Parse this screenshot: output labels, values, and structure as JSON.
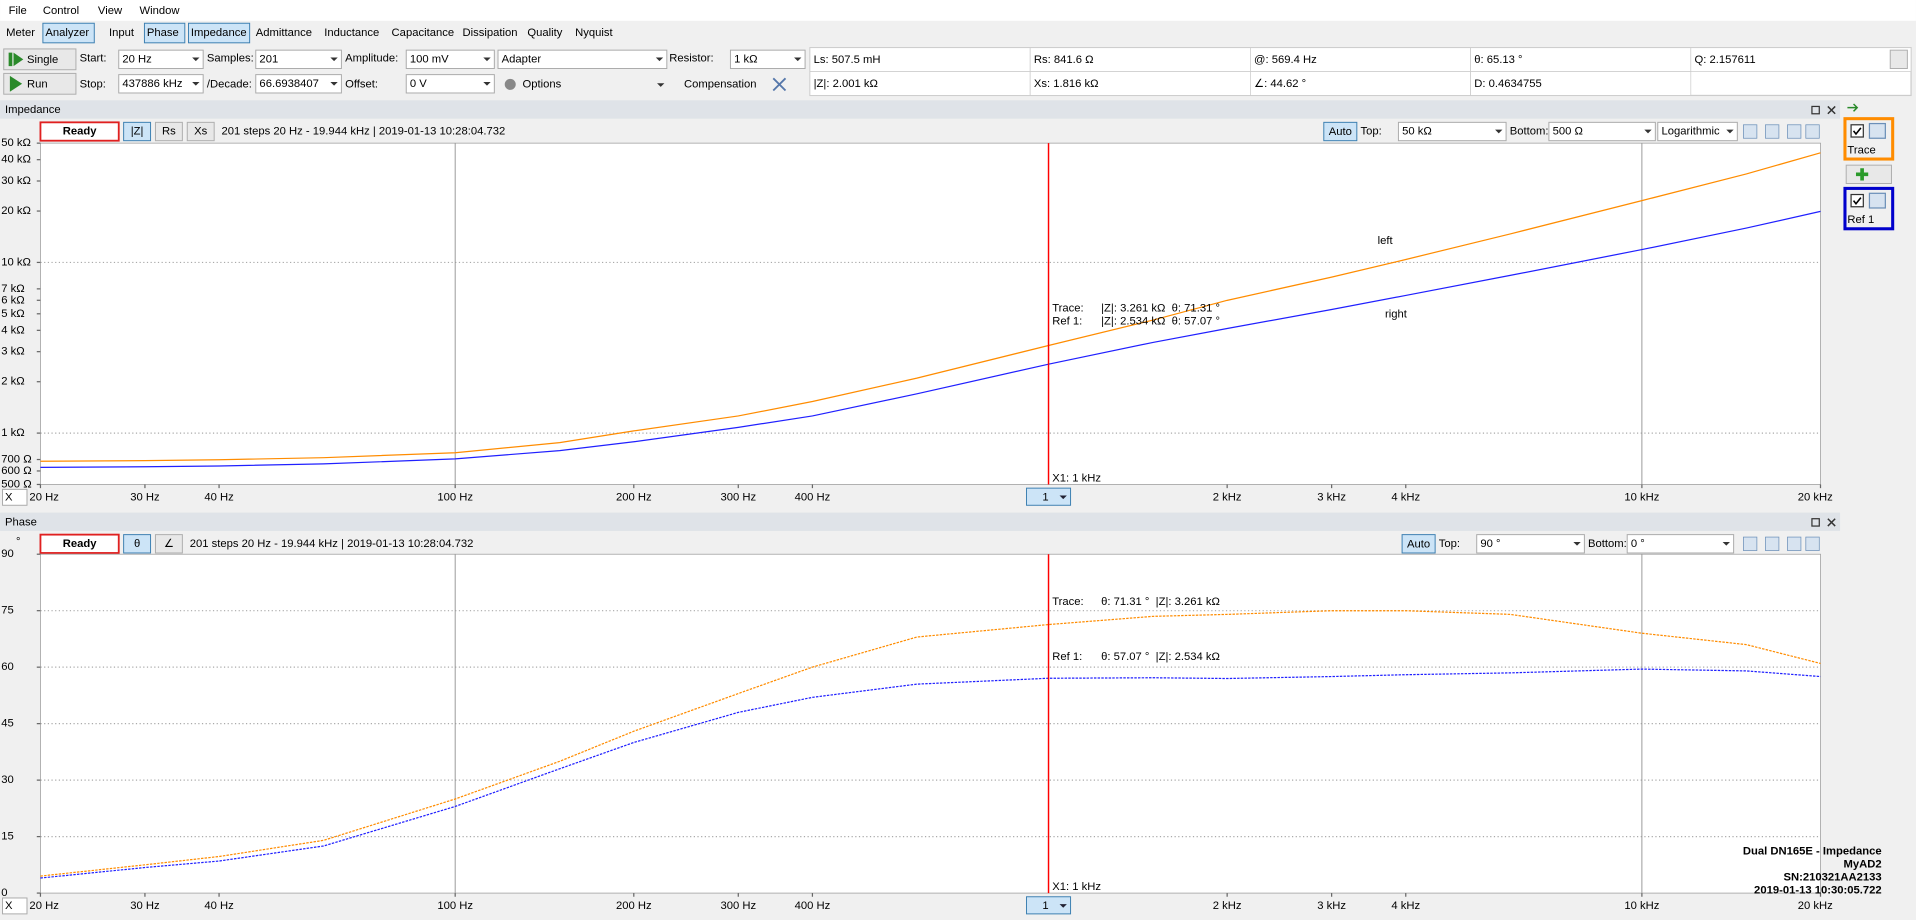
{
  "menu": [
    "File",
    "Control",
    "View",
    "Window"
  ],
  "tabs": [
    "Meter",
    "Analyzer",
    "Input",
    "Phase",
    "Impedance",
    "Admittance",
    "Inductance",
    "Capacitance",
    "Dissipation",
    "Quality",
    "Nyquist"
  ],
  "toolbar": {
    "single": "Single",
    "run": "Run",
    "start_label": "Start:",
    "start": "20 Hz",
    "stop_label": "Stop:",
    "stop": "437886 kHz",
    "samples_label": "Samples:",
    "samples": "201",
    "decade_label": "/Decade:",
    "decade": "66.6938407",
    "amplitude_label": "Amplitude:",
    "amplitude": "100 mV",
    "offset_label": "Offset:",
    "offset": "0 V",
    "adapter": "Adapter",
    "options": "Options",
    "resistor_label": "Resistor:",
    "resistor": "1 kΩ",
    "compensation": "Compensation"
  },
  "readouts": [
    [
      "Ls: 507.5 mH",
      "Rs: 841.6 Ω",
      "@: 569.4 Hz",
      "θ: 65.13 °",
      "Q: 2.157611"
    ],
    [
      "|Z|: 2.001 kΩ",
      "Xs: 1.816 kΩ",
      "∠: 44.62 °",
      "D: 0.4634755"
    ]
  ],
  "impedance": {
    "title": "Impedance",
    "status": "Ready",
    "buttons": [
      "|Z|",
      "Rs",
      "Xs"
    ],
    "info": "201 steps 20 Hz - 19.944 kHz | 2019-01-13 10:28:04.732",
    "auto": "Auto",
    "top_label": "Top:",
    "top": "50 kΩ",
    "bottom_label": "Bottom:",
    "bottom": "500 Ω",
    "scale": "Logarithmic",
    "axis_selector": "X",
    "log_y": true,
    "xlim": [
      20,
      20000
    ],
    "ylim": [
      500,
      50000
    ],
    "xticks": [
      {
        "value": 20,
        "label": "20 Hz"
      },
      {
        "value": 30,
        "label": "30 Hz"
      },
      {
        "value": 40,
        "label": "40 Hz"
      },
      {
        "value": 100,
        "label": "100 Hz"
      },
      {
        "value": 200,
        "label": "200 Hz"
      },
      {
        "value": 300,
        "label": "300 Hz"
      },
      {
        "value": 400,
        "label": "400 Hz"
      },
      {
        "value": 2000,
        "label": "2 kHz"
      },
      {
        "value": 3000,
        "label": "3 kHz"
      },
      {
        "value": 4000,
        "label": "4 kHz"
      },
      {
        "value": 10000,
        "label": "10 kHz"
      },
      {
        "value": 20000,
        "label": "20 kHz"
      }
    ],
    "yticks": [
      {
        "value": 50000,
        "label": "50 kΩ"
      },
      {
        "value": 40000,
        "label": "40 kΩ"
      },
      {
        "value": 30000,
        "label": "30 kΩ"
      },
      {
        "value": 20000,
        "label": "20 kΩ"
      },
      {
        "value": 10000,
        "label": "10 kΩ"
      },
      {
        "value": 7000,
        "label": "7 kΩ"
      },
      {
        "value": 6000,
        "label": "6 kΩ"
      },
      {
        "value": 5000,
        "label": "5 kΩ"
      },
      {
        "value": 4000,
        "label": "4 kΩ"
      },
      {
        "value": 3000,
        "label": "3 kΩ"
      },
      {
        "value": 2000,
        "label": "2 kΩ"
      },
      {
        "value": 1000,
        "label": "1 kΩ"
      },
      {
        "value": 700,
        "label": "700 Ω"
      },
      {
        "value": 600,
        "label": "600 Ω"
      },
      {
        "value": 500,
        "label": "500 Ω"
      }
    ],
    "x": [
      20,
      30,
      40,
      60,
      100,
      150,
      200,
      300,
      400,
      600,
      1000,
      1500,
      2000,
      3000,
      4000,
      6000,
      10000,
      15000,
      20000
    ],
    "series": [
      {
        "name": "Trace",
        "color": "#ff8c00",
        "values": [
          684,
          690,
          698,
          718,
          767,
          880,
          1030,
          1260,
          1530,
          2100,
          3261,
          4600,
          6000,
          8200,
          10400,
          14700,
          23000,
          33000,
          43900
        ]
      },
      {
        "name": "Ref 1",
        "color": "#2020ff",
        "values": [
          630,
          635,
          642,
          660,
          706,
          790,
          890,
          1080,
          1260,
          1700,
          2534,
          3400,
          4100,
          5300,
          6400,
          8400,
          11900,
          15900,
          19900
        ]
      }
    ],
    "cursor": {
      "x": {
        "value": 1000,
        "label": "X1: 1 kHz"
      },
      "selector": "1",
      "readouts": [
        [
          "Trace:",
          "|Z|: 3.261 kΩ  θ: 71.31 °"
        ],
        [
          "Ref 1:",
          "|Z|: 2.534 kΩ  θ: 57.07 °"
        ]
      ]
    },
    "annotations": [
      "left",
      "right"
    ]
  },
  "phase": {
    "title": "Phase",
    "status": "Ready",
    "buttons": [
      "θ",
      "∠"
    ],
    "info": "201 steps 20 Hz - 19.944 kHz | 2019-01-13 10:28:04.732",
    "auto": "Auto",
    "top_label": "Top:",
    "top": "90 °",
    "bottom_label": "Bottom:",
    "bottom": "0 °",
    "axis_selector": "X",
    "y_unit": "°",
    "log_y": false,
    "xlim": [
      20,
      20000
    ],
    "ylim": [
      0,
      90
    ],
    "xticks": [
      {
        "value": 20,
        "label": "20 Hz"
      },
      {
        "value": 30,
        "label": "30 Hz"
      },
      {
        "value": 40,
        "label": "40 Hz"
      },
      {
        "value": 100,
        "label": "100 Hz"
      },
      {
        "value": 200,
        "label": "200 Hz"
      },
      {
        "value": 300,
        "label": "300 Hz"
      },
      {
        "value": 400,
        "label": "400 Hz"
      },
      {
        "value": 2000,
        "label": "2 kHz"
      },
      {
        "value": 3000,
        "label": "3 kHz"
      },
      {
        "value": 4000,
        "label": "4 kHz"
      },
      {
        "value": 10000,
        "label": "10 kHz"
      },
      {
        "value": 20000,
        "label": "20 kHz"
      }
    ],
    "yticks": [
      0,
      15,
      30,
      45,
      60,
      75,
      90
    ],
    "x": [
      20,
      30,
      40,
      60,
      100,
      150,
      200,
      300,
      400,
      600,
      1000,
      1500,
      2000,
      3000,
      4000,
      6000,
      10000,
      15000,
      20000
    ],
    "series": [
      {
        "name": "Trace",
        "color": "#ff8c00",
        "values": [
          4.5,
          7.5,
          9.7,
          14,
          25,
          35,
          43,
          53,
          60,
          68,
          71.31,
          73.5,
          74,
          75,
          75,
          74,
          69,
          66,
          61
        ]
      },
      {
        "name": "Ref 1",
        "color": "#2020ff",
        "values": [
          4,
          6.8,
          8.5,
          12.5,
          23,
          33,
          40,
          48,
          52,
          55.5,
          57.07,
          57.2,
          57,
          57.5,
          58,
          58.5,
          59.5,
          59,
          57.5
        ]
      }
    ],
    "cursor": {
      "x": {
        "value": 1000,
        "label": "X1: 1 kHz"
      },
      "selector": "1",
      "readouts": [
        [
          "Trace:",
          "θ: 71.31 °  |Z|: 3.261 kΩ"
        ],
        [
          "Ref 1:",
          "θ: 57.07 °  |Z|: 2.534 kΩ"
        ]
      ]
    },
    "footer": [
      "Dual DN165E - Impedance",
      "MyAD2",
      "SN:210321AA2133",
      "2019-01-13 10:30:05.722"
    ]
  },
  "traces": [
    "Trace",
    "Ref 1"
  ]
}
